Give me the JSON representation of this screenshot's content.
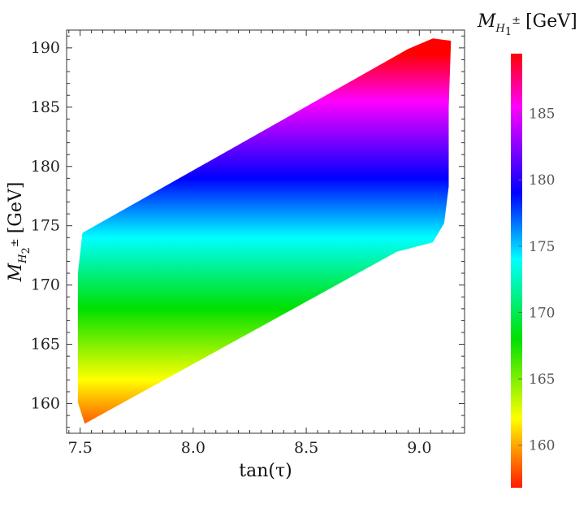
{
  "chart_data": {
    "type": "heatmap",
    "xlabel": "tan(τ)",
    "ylabel": "M_{H2±} [GeV]",
    "ylabel_parts": {
      "symbol": "M",
      "sub": "H",
      "subsub": "2",
      "sup": "±",
      "unit": "[GeV]"
    },
    "xlim": [
      7.44,
      9.2
    ],
    "ylim": [
      157.5,
      191.5
    ],
    "x_ticks": [
      {
        "value": 7.5,
        "label": "7.5"
      },
      {
        "value": 8.0,
        "label": "8.0"
      },
      {
        "value": 8.5,
        "label": "8.5"
      },
      {
        "value": 9.0,
        "label": "9.0"
      }
    ],
    "y_ticks": [
      {
        "value": 160,
        "label": "160"
      },
      {
        "value": 165,
        "label": "165"
      },
      {
        "value": 170,
        "label": "170"
      },
      {
        "value": 175,
        "label": "175"
      },
      {
        "value": 180,
        "label": "180"
      },
      {
        "value": 185,
        "label": "185"
      },
      {
        "value": 190,
        "label": "190"
      }
    ],
    "region_boundary": [
      [
        7.52,
        158.3
      ],
      [
        8.9,
        172.8
      ],
      [
        9.06,
        173.6
      ],
      [
        9.11,
        175.2
      ],
      [
        9.13,
        178.3
      ],
      [
        9.13,
        185.0
      ],
      [
        9.14,
        190.6
      ],
      [
        9.06,
        190.8
      ],
      [
        8.95,
        189.9
      ],
      [
        7.51,
        174.4
      ],
      [
        7.49,
        171.0
      ],
      [
        7.49,
        160.1
      ],
      [
        7.52,
        158.3
      ]
    ],
    "color_variable": "M_{H1±}",
    "colorbar": {
      "title": "M_{H1±} [GeV]",
      "title_parts": {
        "symbol": "M",
        "sub": "H",
        "subsub": "1",
        "sup": "±",
        "unit": "[GeV]"
      },
      "range": [
        156.8,
        189.5
      ],
      "ticks": [
        {
          "value": 160,
          "label": "160"
        },
        {
          "value": 165,
          "label": "165"
        },
        {
          "value": 170,
          "label": "170"
        },
        {
          "value": 175,
          "label": "175"
        },
        {
          "value": 180,
          "label": "180"
        },
        {
          "value": 185,
          "label": "185"
        }
      ],
      "color_stops": [
        {
          "value": 156.8,
          "color": "#ff1a00"
        },
        {
          "value": 162.0,
          "color": "#ffff00"
        },
        {
          "value": 168.0,
          "color": "#00e000"
        },
        {
          "value": 174.0,
          "color": "#00ffff"
        },
        {
          "value": 179.0,
          "color": "#0000ff"
        },
        {
          "value": 185.5,
          "color": "#ff00ff"
        },
        {
          "value": 189.5,
          "color": "#ff0000"
        }
      ]
    },
    "grid": false,
    "legend": "right colorbar"
  }
}
